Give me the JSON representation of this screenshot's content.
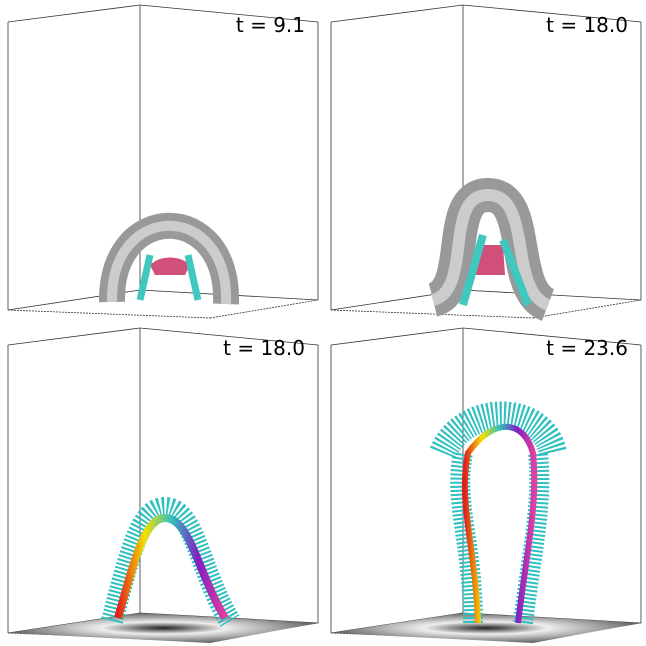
{
  "panels": [
    {
      "label": "t = 9.1"
    },
    {
      "label": "t = 18.0"
    },
    {
      "label": "t = 18.0"
    },
    {
      "label": "t = 23.6"
    }
  ]
}
